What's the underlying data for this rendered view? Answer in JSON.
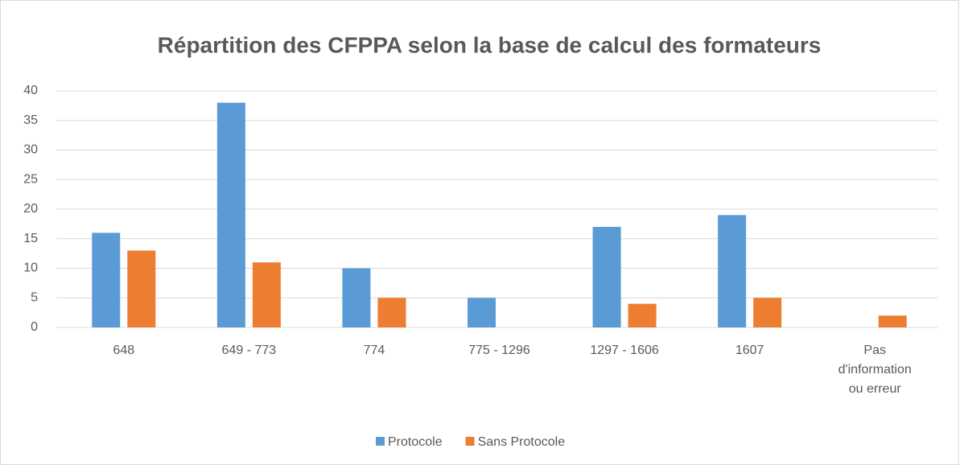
{
  "chart_data": {
    "type": "bar",
    "title": "Répartition des CFPPA selon la base de calcul des formateurs",
    "categories": [
      "648",
      "649  - 773",
      "774",
      "775 - 1296",
      "1297 - 1606",
      "1607",
      "Pas d'information ou erreur"
    ],
    "series": [
      {
        "name": "Protocole",
        "color": "#5b9bd5",
        "values": [
          16,
          38,
          10,
          5,
          17,
          19,
          0
        ]
      },
      {
        "name": "Sans Protocole",
        "color": "#ed7d31",
        "values": [
          13,
          11,
          5,
          0,
          4,
          5,
          2
        ]
      }
    ],
    "ylim": [
      0,
      40
    ],
    "yticks": [
      0,
      5,
      10,
      15,
      20,
      25,
      30,
      35,
      40
    ],
    "grid": true,
    "legend": "bottom"
  }
}
